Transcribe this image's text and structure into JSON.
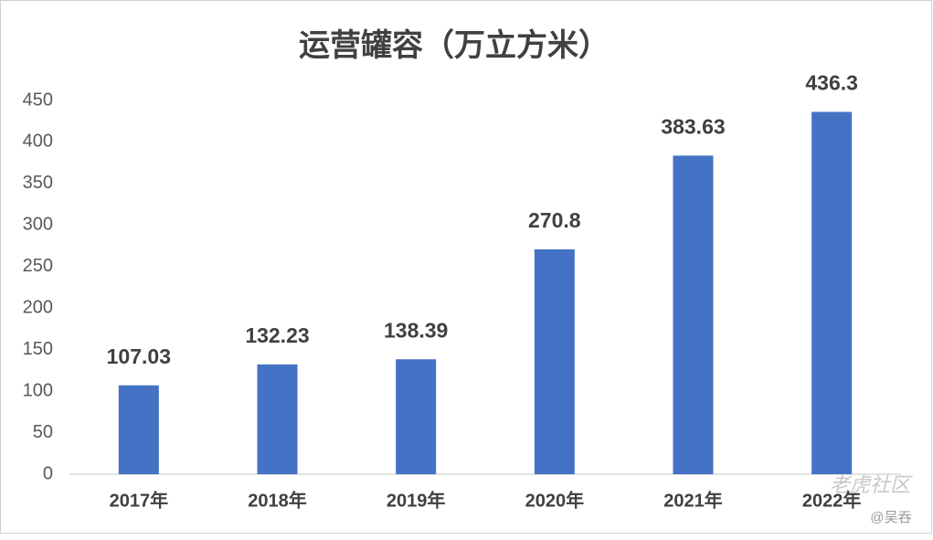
{
  "chart_data": {
    "type": "bar",
    "title": "运营罐容（万立方米）",
    "categories": [
      "2017年",
      "2018年",
      "2019年",
      "2020年",
      "2021年",
      "2022年"
    ],
    "values": [
      107.03,
      132.23,
      138.39,
      270.8,
      383.63,
      436.3
    ],
    "color": "#4472c4",
    "ylim": [
      0,
      450
    ],
    "yticks": [
      0,
      50,
      100,
      150,
      200,
      250,
      300,
      350,
      400,
      450
    ],
    "grid": false,
    "data_labels": true
  },
  "watermark": {
    "brand": "老虎社区",
    "author": "@吴吞"
  }
}
